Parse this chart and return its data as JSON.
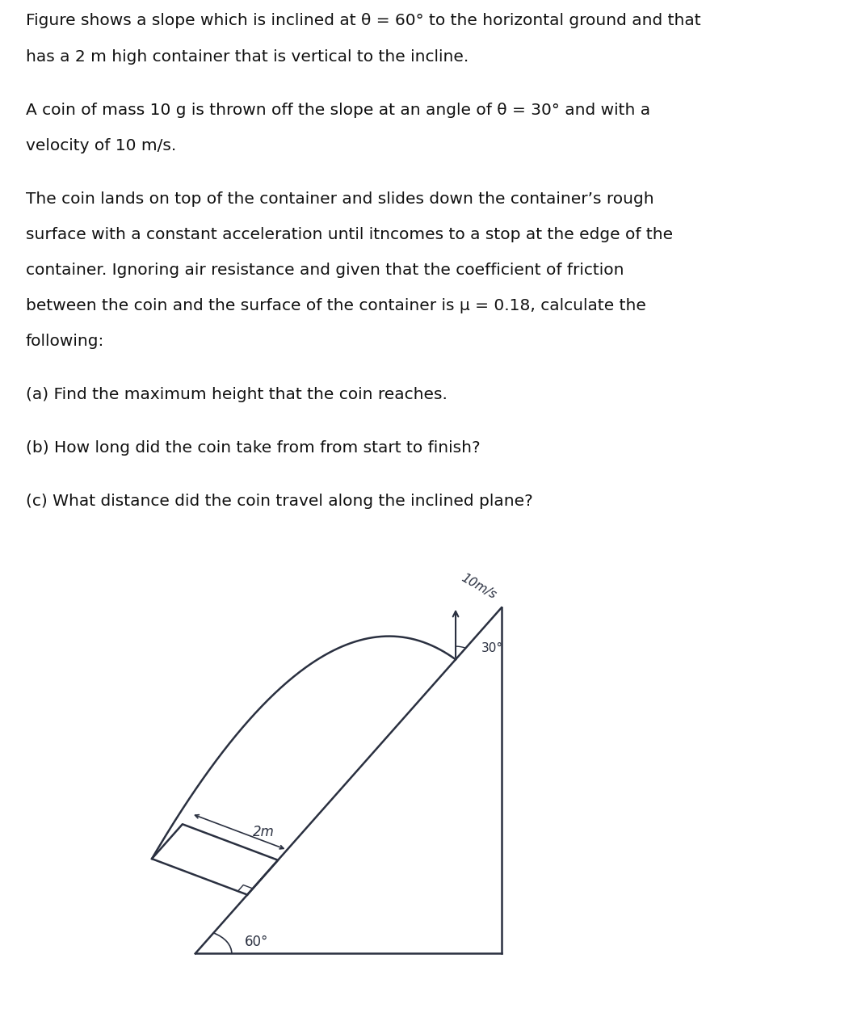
{
  "text_lines": [
    "Figure shows a slope which is inclined at θ = 60° to the horizontal ground and that",
    "has a 2 m high container that is vertical to the incline.",
    "",
    "A coin of mass 10 g is thrown off the slope at an angle of θ = 30° and with a",
    "velocity of 10 m/s.",
    "",
    "The coin lands on top of the container and slides down the container’s rough",
    "surface with a constant acceleration until itncomes to a stop at the edge of the",
    "container. Ignoring air resistance and given that the coefficient of friction",
    "between the coin and the surface of the container is μ = 0.18, calculate the",
    "following:",
    "",
    "(a) Find the maximum height that the coin reaches.",
    "",
    "(b) How long did the coin take from from start to finish?",
    "",
    "(c) What distance did the coin travel along the inclined plane?"
  ],
  "bg_color_top": "#ffffff",
  "bg_color_diagram": "#adb5ad",
  "diagram_line_color": "#2a3040",
  "velocity_label": "10m/s",
  "container_height_label": "2m",
  "angle_60_label": "60°",
  "angle_30_label": "30°",
  "text_fontsize": 14.5,
  "diagram_fontsize": 12
}
